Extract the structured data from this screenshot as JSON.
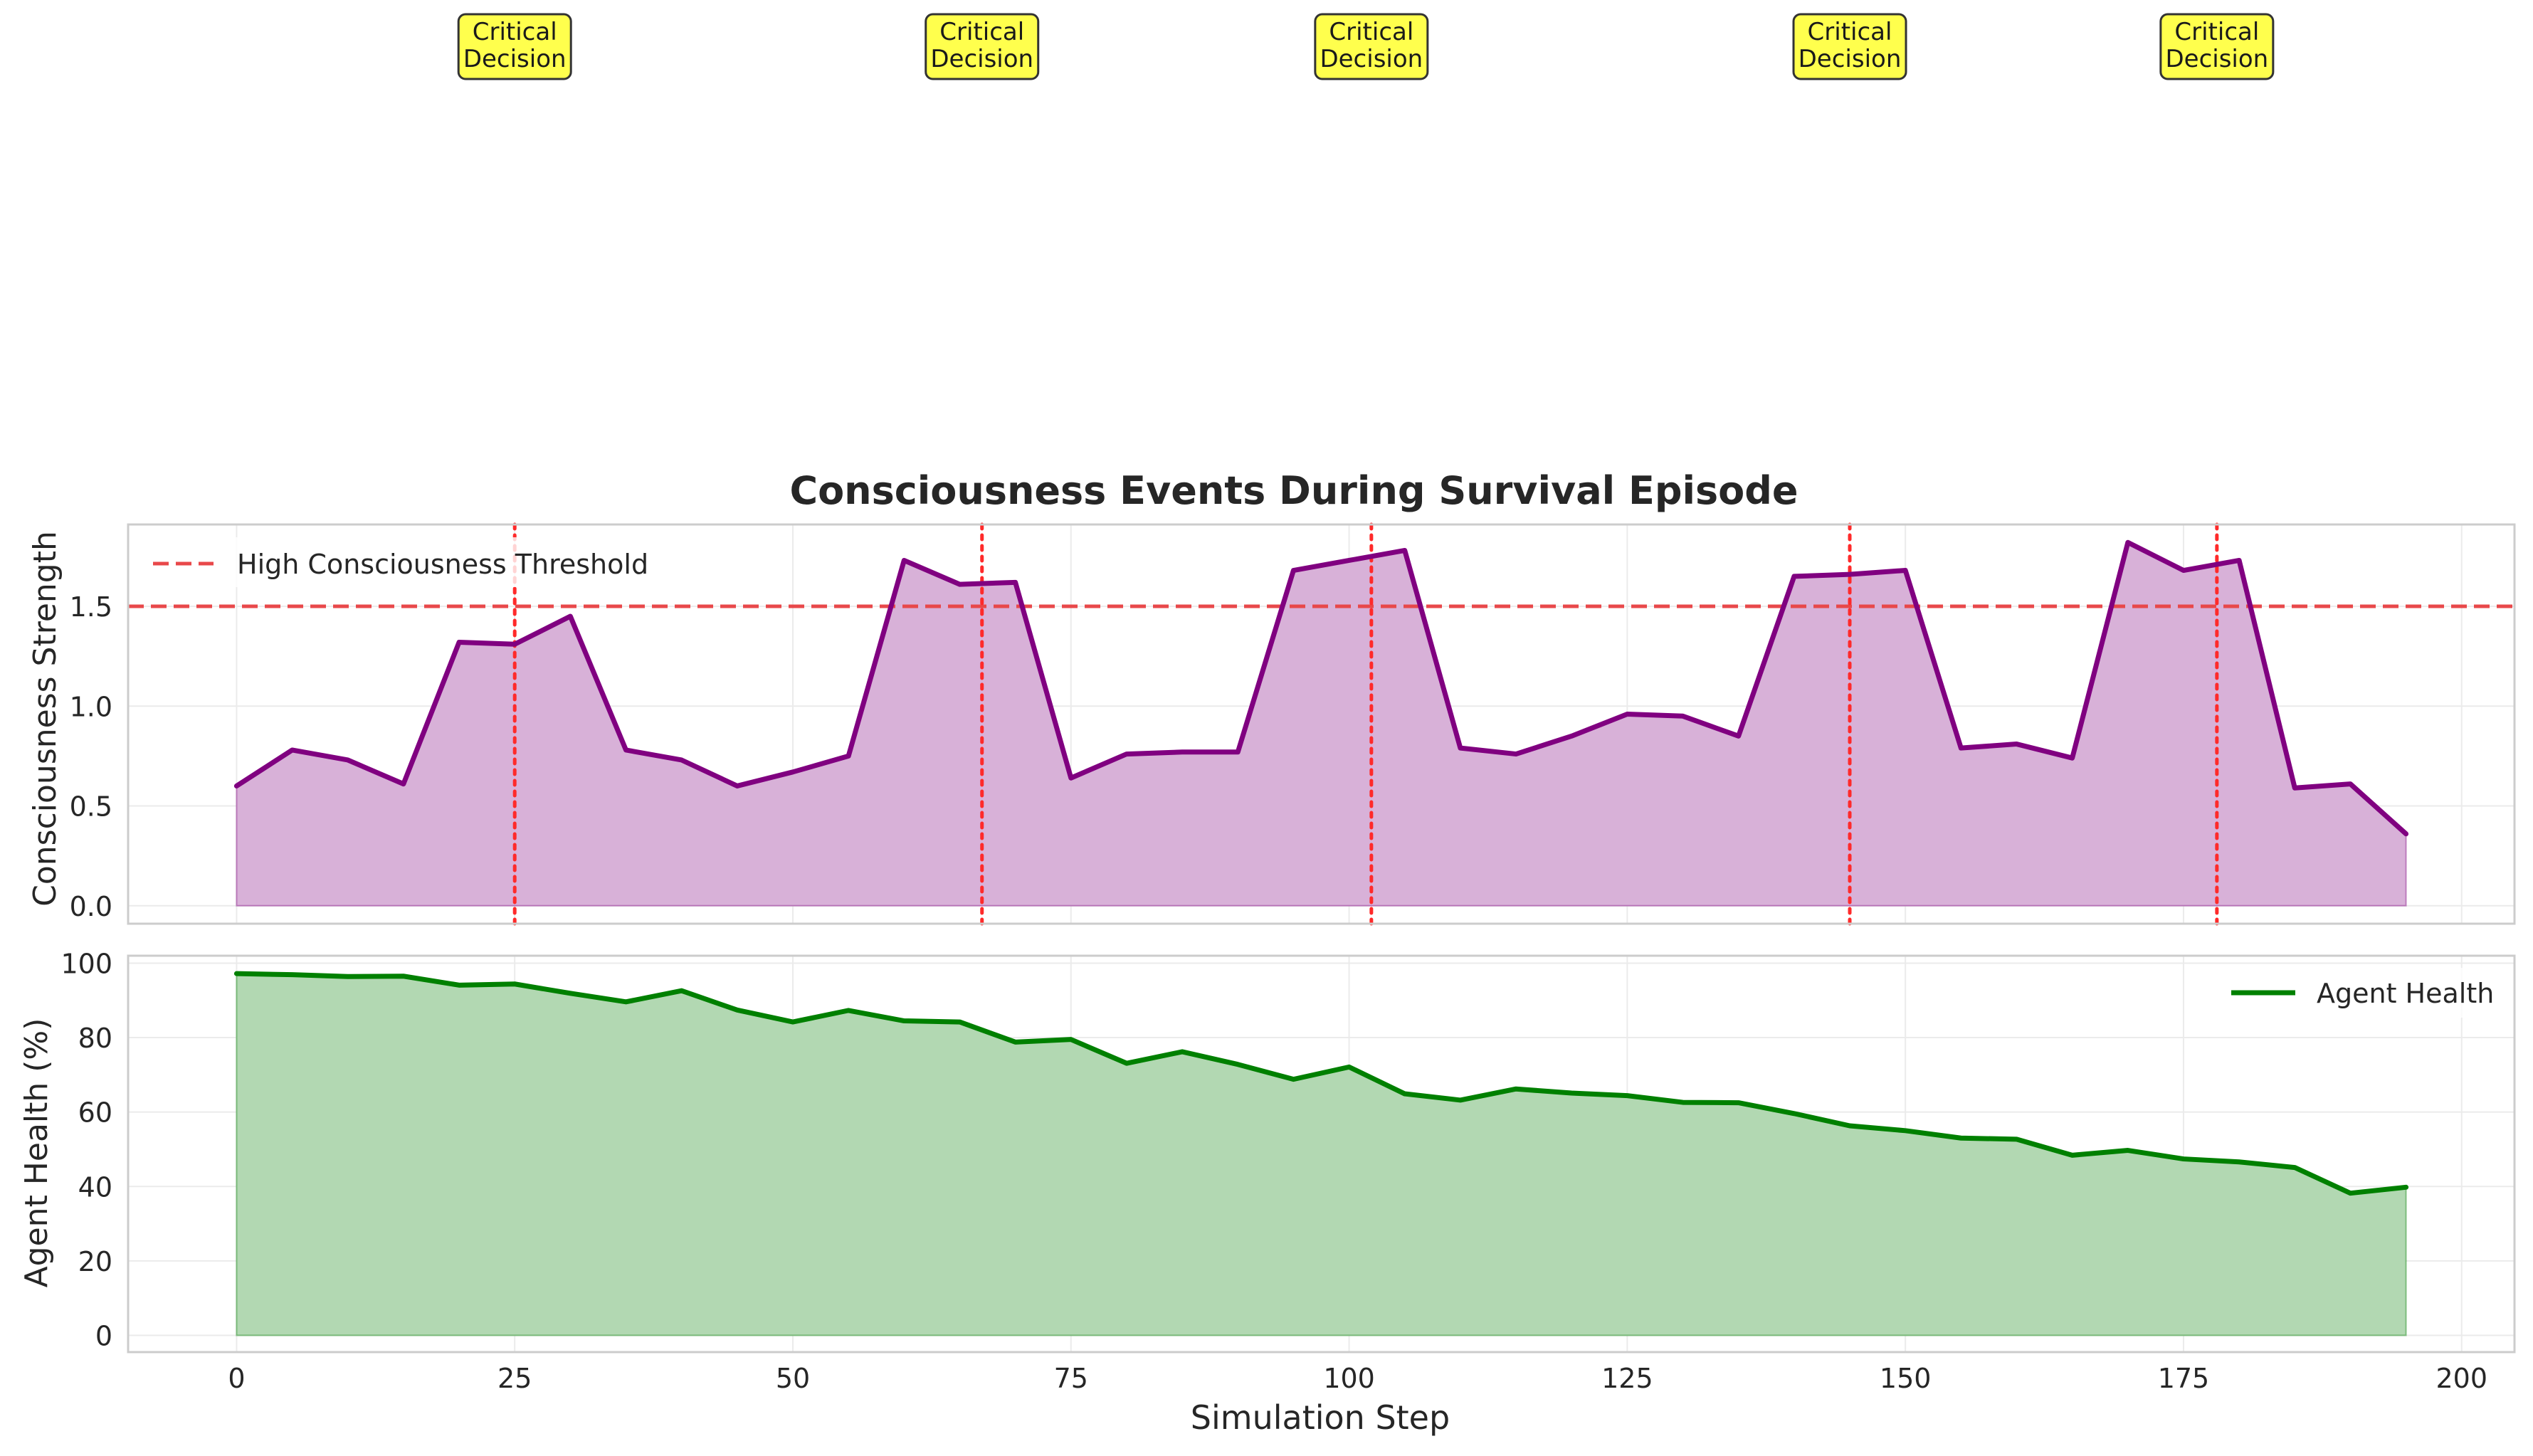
{
  "chart_data": [
    {
      "type": "area",
      "title": "Consciousness Events During Survival Episode",
      "xlabel": "",
      "ylabel": "Consciousness Strength",
      "xlim": [
        -9.75,
        204.75
      ],
      "ylim": [
        -0.09,
        1.91
      ],
      "xticks": [
        0,
        25,
        50,
        75,
        100,
        125,
        150,
        175,
        200
      ],
      "yticks": [
        0.0,
        0.5,
        1.0,
        1.5
      ],
      "ytick_labels": [
        "0.0",
        "0.5",
        "1.0",
        "1.5"
      ],
      "show_xtick_labels": false,
      "grid": true,
      "legend": {
        "position": "upper-left",
        "entries": [
          "High Consciousness Threshold"
        ]
      },
      "x": [
        0,
        5,
        10,
        15,
        20,
        25,
        30,
        35,
        40,
        45,
        50,
        55,
        60,
        65,
        70,
        75,
        80,
        85,
        90,
        95,
        100,
        105,
        110,
        115,
        120,
        125,
        130,
        135,
        140,
        145,
        150,
        155,
        160,
        165,
        170,
        175,
        180,
        185,
        190,
        195
      ],
      "series": [
        {
          "name": "",
          "color": "#800080",
          "fill_color": "#D8B1D8",
          "values": [
            0.6,
            0.78,
            0.73,
            0.61,
            1.32,
            1.31,
            1.45,
            0.78,
            0.73,
            0.6,
            0.67,
            0.75,
            1.73,
            1.61,
            1.62,
            0.64,
            0.76,
            0.77,
            0.77,
            1.68,
            1.73,
            1.78,
            0.79,
            0.76,
            0.85,
            0.96,
            0.95,
            0.85,
            1.65,
            1.66,
            1.68,
            0.79,
            0.81,
            0.74,
            1.82,
            1.68,
            1.73,
            0.59,
            0.61,
            0.36
          ]
        }
      ],
      "threshold": {
        "label": "High Consciousness Threshold",
        "value": 1.5,
        "color": "#E8484A"
      },
      "events": {
        "label": "Critical Decision",
        "x": [
          25,
          67,
          102,
          145,
          178
        ],
        "line_color": "#FF2A2A",
        "box_color": "#FFFF4D"
      }
    },
    {
      "type": "area",
      "title": "",
      "xlabel": "Simulation Step",
      "ylabel": "Agent Health (%)",
      "xlim": [
        -9.75,
        204.75
      ],
      "ylim": [
        -4.5,
        102
      ],
      "xticks": [
        0,
        25,
        50,
        75,
        100,
        125,
        150,
        175,
        200
      ],
      "xtick_labels": [
        "0",
        "25",
        "50",
        "75",
        "100",
        "125",
        "150",
        "175",
        "200"
      ],
      "yticks": [
        0,
        20,
        40,
        60,
        80,
        100
      ],
      "ytick_labels": [
        "0",
        "20",
        "40",
        "60",
        "80",
        "100"
      ],
      "grid": true,
      "legend": {
        "position": "upper-right",
        "entries": [
          "Agent Health"
        ]
      },
      "x": [
        0,
        5,
        10,
        15,
        20,
        25,
        30,
        35,
        40,
        45,
        50,
        55,
        60,
        65,
        70,
        75,
        80,
        85,
        90,
        95,
        100,
        105,
        110,
        115,
        120,
        125,
        130,
        135,
        140,
        145,
        150,
        155,
        160,
        165,
        170,
        175,
        180,
        185,
        190,
        195
      ],
      "series": [
        {
          "name": "Agent Health",
          "color": "#008000",
          "fill_color": "#B2D8B2",
          "values": [
            97.2,
            96.9,
            96.4,
            96.5,
            94.1,
            94.4,
            91.9,
            89.6,
            92.6,
            87.4,
            84.2,
            87.3,
            84.5,
            84.2,
            78.8,
            79.5,
            73.1,
            76.2,
            72.8,
            68.8,
            72.1,
            64.9,
            63.2,
            66.2,
            65.1,
            64.4,
            62.6,
            62.5,
            59.6,
            56.3,
            55.0,
            53.0,
            52.7,
            48.4,
            49.7,
            47.4,
            46.6,
            45.1,
            38.2,
            39.8
          ]
        }
      ]
    }
  ]
}
